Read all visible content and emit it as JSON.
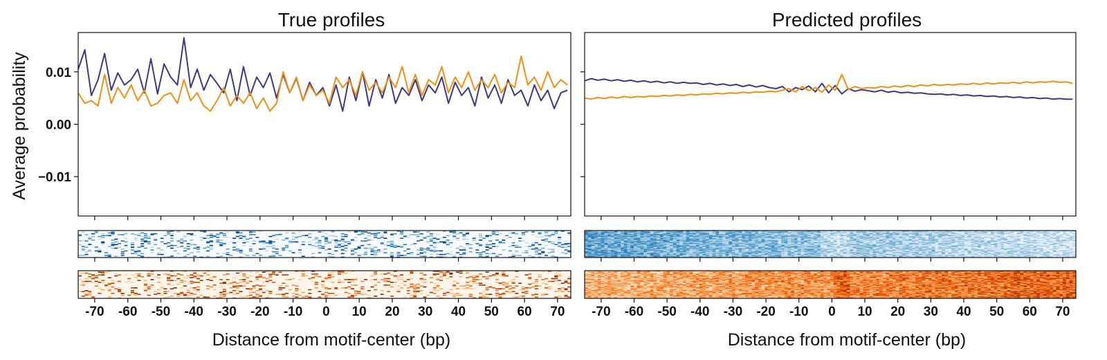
{
  "chart_data": [
    {
      "type": "line",
      "panel": "left-profile",
      "title": "True profiles",
      "ylabel": "Average probability",
      "xlabel": "",
      "xlim": [
        -75,
        74
      ],
      "ylim": [
        -0.0175,
        0.0175
      ],
      "yticks": [
        0.01,
        0.0,
        -0.01
      ],
      "ytick_labels": [
        "0.01",
        "0.00",
        "−0.01"
      ],
      "xticks": [
        -70,
        -60,
        -50,
        -40,
        -30,
        -20,
        -10,
        0,
        10,
        20,
        30,
        40,
        50,
        60,
        70
      ],
      "grid": false,
      "legend": "none",
      "series_colors": [
        "#3d3784",
        "#f28e12"
      ],
      "series": [
        {
          "x": [
            -75,
            -73,
            -71,
            -69,
            -67,
            -65,
            -63,
            -61,
            -59,
            -57,
            -55,
            -53,
            -51,
            -49,
            -47,
            -45,
            -43,
            -41,
            -39,
            -37,
            -35,
            -33,
            -31,
            -29,
            -27,
            -25,
            -23,
            -21,
            -19,
            -17,
            -15,
            -13,
            -11,
            -9,
            -7,
            -5,
            -3,
            -1,
            1,
            3,
            5,
            7,
            9,
            11,
            13,
            15,
            17,
            19,
            21,
            23,
            25,
            27,
            29,
            31,
            33,
            35,
            37,
            39,
            41,
            43,
            45,
            47,
            49,
            51,
            53,
            55,
            57,
            59,
            61,
            63,
            65,
            67,
            69,
            71,
            73
          ],
          "values": [
            0.0105,
            0.0142,
            0.0055,
            0.0085,
            0.0135,
            0.0065,
            0.0098,
            0.0075,
            0.0085,
            0.0105,
            0.006,
            0.0125,
            0.0058,
            0.0115,
            0.009,
            0.0075,
            0.0165,
            0.007,
            0.0105,
            0.0065,
            0.0095,
            0.0078,
            0.006,
            0.0105,
            0.0045,
            0.011,
            0.0055,
            0.009,
            0.007,
            0.0098,
            0.005,
            0.0095,
            0.006,
            0.0088,
            0.0045,
            0.008,
            0.0055,
            0.007,
            0.0035,
            0.0075,
            0.0025,
            0.009,
            0.0045,
            0.01,
            0.0035,
            0.0085,
            0.005,
            0.0095,
            0.004,
            0.007,
            0.0055,
            0.0085,
            0.0045,
            0.0075,
            0.006,
            0.009,
            0.004,
            0.008,
            0.0055,
            0.007,
            0.0035,
            0.009,
            0.005,
            0.0075,
            0.004,
            0.0085,
            0.0055,
            0.0065,
            0.0035,
            0.0075,
            0.0045,
            0.0065,
            0.003,
            0.006,
            0.0065
          ]
        },
        {
          "x": [
            -75,
            -73,
            -71,
            -69,
            -67,
            -65,
            -63,
            -61,
            -59,
            -57,
            -55,
            -53,
            -51,
            -49,
            -47,
            -45,
            -43,
            -41,
            -39,
            -37,
            -35,
            -33,
            -31,
            -29,
            -27,
            -25,
            -23,
            -21,
            -19,
            -17,
            -15,
            -13,
            -11,
            -9,
            -7,
            -5,
            -3,
            -1,
            1,
            3,
            5,
            7,
            9,
            11,
            13,
            15,
            17,
            19,
            21,
            23,
            25,
            27,
            29,
            31,
            33,
            35,
            37,
            39,
            41,
            43,
            45,
            47,
            49,
            51,
            53,
            55,
            57,
            59,
            61,
            63,
            65,
            67,
            69,
            71,
            73
          ],
          "values": [
            0.006,
            0.004,
            0.0045,
            0.0035,
            0.0095,
            0.004,
            0.007,
            0.005,
            0.0075,
            0.0045,
            0.0065,
            0.0035,
            0.004,
            0.0055,
            0.006,
            0.004,
            0.0085,
            0.0045,
            0.006,
            0.0035,
            0.0025,
            0.0045,
            0.007,
            0.0035,
            0.0055,
            0.004,
            0.006,
            0.003,
            0.005,
            0.0025,
            0.004,
            0.01,
            0.006,
            0.009,
            0.0045,
            0.0075,
            0.0055,
            0.0065,
            0.004,
            0.009,
            0.007,
            0.0085,
            0.0055,
            0.01,
            0.0065,
            0.008,
            0.006,
            0.009,
            0.007,
            0.011,
            0.006,
            0.0095,
            0.0055,
            0.0085,
            0.0075,
            0.011,
            0.006,
            0.009,
            0.007,
            0.01,
            0.0065,
            0.0085,
            0.007,
            0.0095,
            0.006,
            0.008,
            0.007,
            0.013,
            0.0075,
            0.009,
            0.0065,
            0.01,
            0.007,
            0.0085,
            0.0075
          ]
        }
      ]
    },
    {
      "type": "line",
      "panel": "right-profile",
      "title": "Predicted profiles",
      "xlabel": "",
      "ylabel": "",
      "xlim": [
        -75,
        74
      ],
      "ylim": [
        -0.0175,
        0.0175
      ],
      "xticks": [
        -70,
        -60,
        -50,
        -40,
        -30,
        -20,
        -10,
        0,
        10,
        20,
        30,
        40,
        50,
        60,
        70
      ],
      "grid": false,
      "legend": "none",
      "series_colors": [
        "#3d3784",
        "#f28e12"
      ],
      "series": [
        {
          "x": [
            -75,
            -73,
            -71,
            -69,
            -67,
            -65,
            -63,
            -61,
            -59,
            -57,
            -55,
            -53,
            -51,
            -49,
            -47,
            -45,
            -43,
            -41,
            -39,
            -37,
            -35,
            -33,
            -31,
            -29,
            -27,
            -25,
            -23,
            -21,
            -19,
            -17,
            -15,
            -13,
            -11,
            -9,
            -7,
            -5,
            -3,
            -1,
            1,
            3,
            5,
            7,
            9,
            11,
            13,
            15,
            17,
            19,
            21,
            23,
            25,
            27,
            29,
            31,
            33,
            35,
            37,
            39,
            41,
            43,
            45,
            47,
            49,
            51,
            53,
            55,
            57,
            59,
            61,
            63,
            65,
            67,
            69,
            71,
            73
          ],
          "values": [
            0.0083,
            0.0087,
            0.0084,
            0.0086,
            0.0083,
            0.0085,
            0.0082,
            0.0084,
            0.0081,
            0.0083,
            0.008,
            0.0082,
            0.0079,
            0.0081,
            0.0078,
            0.008,
            0.0078,
            0.0079,
            0.0076,
            0.0078,
            0.0075,
            0.0077,
            0.0074,
            0.0076,
            0.0072,
            0.0075,
            0.0071,
            0.0074,
            0.007,
            0.0068,
            0.0072,
            0.0062,
            0.007,
            0.0066,
            0.0073,
            0.0062,
            0.0078,
            0.006,
            0.0074,
            0.0058,
            0.0068,
            0.0063,
            0.0066,
            0.0064,
            0.0062,
            0.0065,
            0.0061,
            0.0063,
            0.006,
            0.0061,
            0.0059,
            0.006,
            0.0058,
            0.0057,
            0.0058,
            0.0056,
            0.0057,
            0.0055,
            0.0056,
            0.0054,
            0.0055,
            0.0053,
            0.0054,
            0.0052,
            0.0053,
            0.0051,
            0.0052,
            0.005,
            0.0051,
            0.0049,
            0.005,
            0.0048,
            0.0049,
            0.0048,
            0.0048
          ]
        },
        {
          "x": [
            -75,
            -73,
            -71,
            -69,
            -67,
            -65,
            -63,
            -61,
            -59,
            -57,
            -55,
            -53,
            -51,
            -49,
            -47,
            -45,
            -43,
            -41,
            -39,
            -37,
            -35,
            -33,
            -31,
            -29,
            -27,
            -25,
            -23,
            -21,
            -19,
            -17,
            -15,
            -13,
            -11,
            -9,
            -7,
            -5,
            -3,
            -1,
            1,
            3,
            5,
            7,
            9,
            11,
            13,
            15,
            17,
            19,
            21,
            23,
            25,
            27,
            29,
            31,
            33,
            35,
            37,
            39,
            41,
            43,
            45,
            47,
            49,
            51,
            53,
            55,
            57,
            59,
            61,
            63,
            65,
            67,
            69,
            71,
            73
          ],
          "values": [
            0.005,
            0.0048,
            0.0051,
            0.0049,
            0.0052,
            0.005,
            0.0053,
            0.0051,
            0.0053,
            0.0052,
            0.0054,
            0.0053,
            0.0055,
            0.0054,
            0.0056,
            0.0055,
            0.0057,
            0.0056,
            0.0058,
            0.0057,
            0.0059,
            0.0058,
            0.006,
            0.0059,
            0.0061,
            0.006,
            0.0062,
            0.0061,
            0.0063,
            0.0062,
            0.0065,
            0.0068,
            0.0062,
            0.0072,
            0.0064,
            0.007,
            0.0061,
            0.0075,
            0.0065,
            0.0095,
            0.0066,
            0.0072,
            0.0068,
            0.007,
            0.0069,
            0.0072,
            0.007,
            0.0073,
            0.0071,
            0.0074,
            0.0072,
            0.0075,
            0.0073,
            0.0076,
            0.0074,
            0.0076,
            0.0075,
            0.0077,
            0.0076,
            0.0078,
            0.0076,
            0.0079,
            0.0077,
            0.0079,
            0.0078,
            0.008,
            0.0078,
            0.0081,
            0.0079,
            0.0081,
            0.008,
            0.0082,
            0.008,
            0.0081,
            0.0078
          ]
        }
      ]
    },
    {
      "type": "heatmap",
      "panel": "left-top-heatmap",
      "colormap": "Blues",
      "x_range": [
        -75,
        74
      ],
      "rows": 30,
      "columns": 150
    },
    {
      "type": "heatmap",
      "panel": "left-bottom-heatmap",
      "colormap": "Oranges",
      "x_range": [
        -75,
        74
      ],
      "rows": 30,
      "columns": 150
    },
    {
      "type": "heatmap",
      "panel": "right-top-heatmap",
      "colormap": "Blues",
      "x_range": [
        -75,
        74
      ],
      "rows": 30,
      "columns": 150
    },
    {
      "type": "heatmap",
      "panel": "right-bottom-heatmap",
      "colormap": "Oranges",
      "x_range": [
        -75,
        74
      ],
      "rows": 30,
      "columns": 150
    },
    {
      "type": "table",
      "panel": "shared-x-axis",
      "xlabel": "Distance from motif-center (bp)",
      "xticks": [
        -70,
        -60,
        -50,
        -40,
        -30,
        -20,
        -10,
        0,
        10,
        20,
        30,
        40,
        50,
        60,
        70
      ]
    }
  ]
}
